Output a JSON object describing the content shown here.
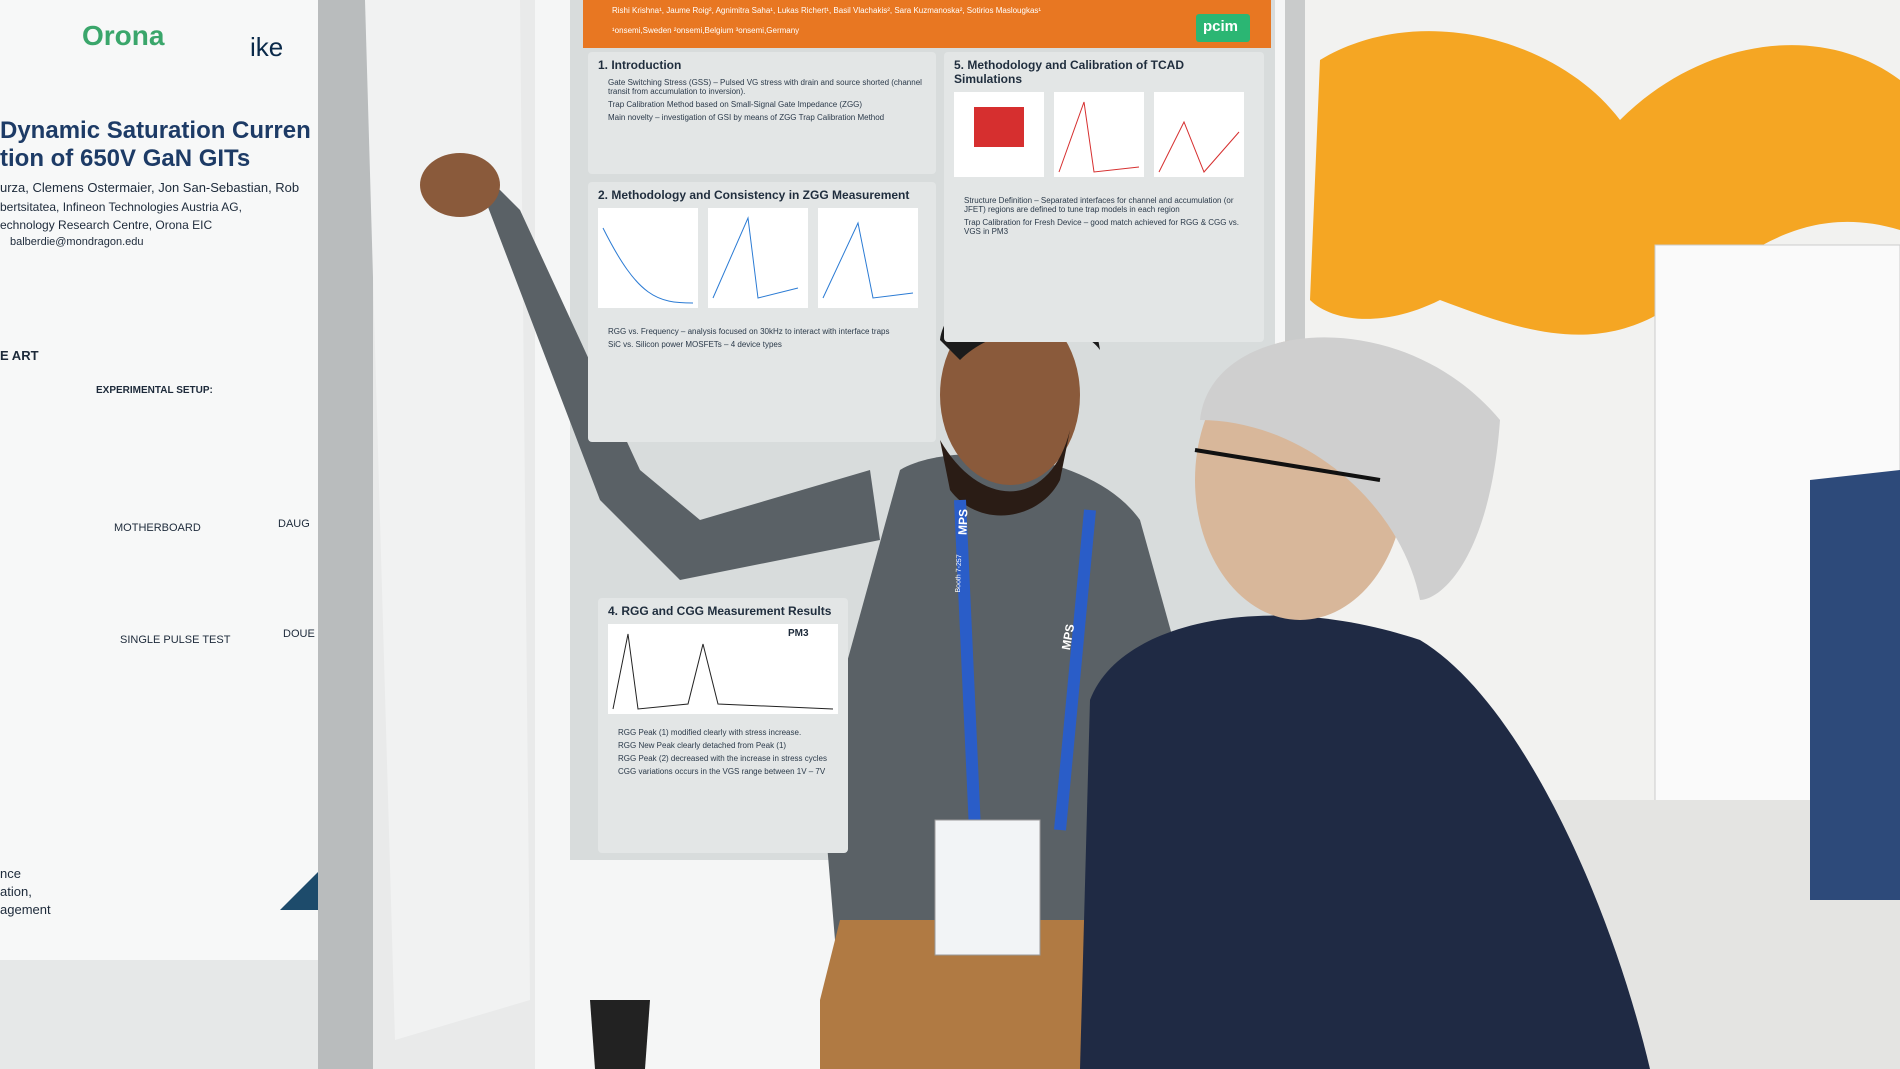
{
  "left_poster": {
    "logo": "Orona",
    "logo_partial": "ike",
    "title_line1": "Dynamic Saturation Curren",
    "title_line2": "tion of 650V GaN GITs",
    "authors": "urza, Clemens Ostermaier, Jon San-Sebastian, Rob",
    "affiliation1": "bertsitatea, Infineon Technologies Austria AG,",
    "affiliation2": "echnology Research Centre, Orona EIC",
    "email": "balberdie@mondragon.edu",
    "section": "E ART",
    "setup_heading": "EXPERIMENTAL SETUP:",
    "motherboard": "MOTHERBOARD",
    "daughter": "DAUG",
    "single_pulse": "SINGLE PULSE TEST",
    "double": "DOUE",
    "footer1": "nce",
    "footer2": "ation,",
    "footer3": "agement"
  },
  "center_poster": {
    "authors": "Rishi Krishna¹, Jaume Roig², Agnimitra Saha¹, Lukas Richert¹, Basil Vlachakis², Sara Kuzmanoska², Sotirios Maslougkas¹",
    "affiliations": "¹onsemi,Sweden ²onsemi,Belgium ³onsemi,Germany",
    "logo": "pcim",
    "sections": [
      {
        "heading": "1. Introduction",
        "bullets": [
          "Gate Switching Stress (GSS) – Pulsed VG stress with drain and source shorted (channel transit from accumulation to inversion).",
          "Trap Calibration Method based on Small-Signal Gate Impedance (ZGG)",
          "Main novelty – investigation of GSI by means of ZGG Trap Calibration Method"
        ]
      },
      {
        "heading": "2. Methodology and Consistency in ZGG Measurement",
        "bullets": [
          "RGG vs. Frequency – analysis focused on 30kHz to interact with interface traps",
          "SiC vs. Silicon power MOSFETs – 4 device types"
        ]
      },
      {
        "heading": "4. RGG and CGG Measurement Results",
        "bullets": [
          "RGG Peak (1) modified clearly with stress increase.",
          "RGG New Peak clearly detached from Peak (1)",
          "RGG Peak (2) decreased with the increase in stress cycles",
          "CGG variations occurs in the VGS range between 1V – 7V"
        ]
      },
      {
        "heading": "5. Methodology and Calibration of TCAD Simulations",
        "bullets": [
          "Structure Definition – Separated interfaces for channel and accumulation (or JFET) regions are defined to tune trap models in each region",
          "Trap Calibration for Fresh Device – good match achieved for RGG & CGG vs. VGS in PM3"
        ]
      }
    ],
    "pm3": "PM3"
  },
  "lanyard": {
    "brand": "MPS",
    "booth": "Booth 7-257"
  }
}
